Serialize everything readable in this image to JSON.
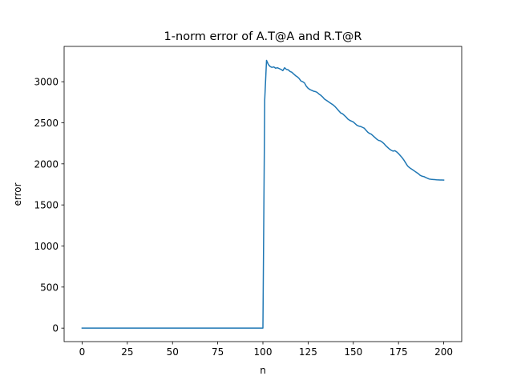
{
  "chart_data": {
    "type": "line",
    "title": "1-norm error of A.T@A and R.T@R",
    "xlabel": "n",
    "ylabel": "error",
    "xlim": [
      -9.95,
      209.95
    ],
    "ylim": [
      -164,
      3430
    ],
    "xticks": [
      0,
      25,
      50,
      75,
      100,
      125,
      150,
      175,
      200
    ],
    "yticks": [
      0,
      500,
      1000,
      1500,
      2000,
      2500,
      3000
    ],
    "grid": false,
    "legend": "none",
    "series": [
      {
        "color": "#1f77b4",
        "x": [
          0,
          25,
          50,
          75,
          100,
          101,
          102,
          103,
          104,
          105,
          106,
          107,
          108,
          109,
          110,
          111,
          112,
          113,
          114,
          115,
          116,
          117,
          118,
          119,
          120,
          121,
          122,
          123,
          124,
          125,
          126,
          127,
          128,
          129,
          130,
          131,
          132,
          133,
          134,
          135,
          136,
          137,
          138,
          139,
          140,
          141,
          142,
          143,
          144,
          145,
          146,
          147,
          148,
          149,
          150,
          151,
          152,
          153,
          154,
          155,
          156,
          157,
          158,
          159,
          160,
          161,
          162,
          163,
          164,
          165,
          166,
          167,
          168,
          169,
          170,
          171,
          172,
          173,
          174,
          175,
          176,
          177,
          178,
          179,
          180,
          181,
          182,
          183,
          184,
          185,
          186,
          187,
          188,
          189,
          190,
          191,
          192,
          193,
          194,
          195,
          196,
          197,
          198,
          199,
          200
        ],
        "values": [
          0,
          0,
          0,
          0,
          0,
          2780,
          3260,
          3210,
          3185,
          3175,
          3180,
          3165,
          3170,
          3160,
          3150,
          3135,
          3170,
          3150,
          3145,
          3125,
          3115,
          3095,
          3075,
          3060,
          3040,
          3010,
          3000,
          2985,
          2945,
          2920,
          2905,
          2895,
          2885,
          2880,
          2870,
          2850,
          2835,
          2815,
          2790,
          2775,
          2760,
          2745,
          2730,
          2715,
          2695,
          2670,
          2645,
          2620,
          2610,
          2590,
          2570,
          2545,
          2530,
          2520,
          2510,
          2490,
          2470,
          2460,
          2455,
          2445,
          2435,
          2410,
          2385,
          2370,
          2360,
          2340,
          2320,
          2300,
          2285,
          2280,
          2265,
          2245,
          2220,
          2200,
          2180,
          2165,
          2155,
          2160,
          2145,
          2125,
          2100,
          2075,
          2045,
          2010,
          1975,
          1955,
          1940,
          1925,
          1910,
          1895,
          1880,
          1860,
          1850,
          1845,
          1835,
          1825,
          1815,
          1812,
          1810,
          1808,
          1806,
          1805,
          1804,
          1803,
          1802
        ]
      }
    ]
  }
}
